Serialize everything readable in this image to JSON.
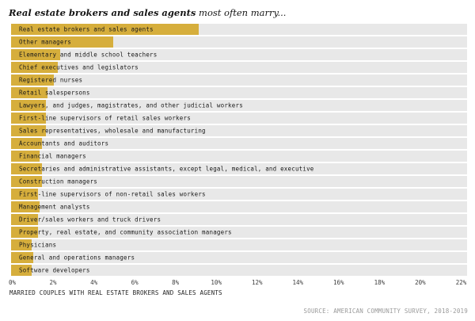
{
  "title": {
    "emphasis": "Real estate brokers and sales agents",
    "rest": " most often marry..."
  },
  "chart_data": {
    "type": "bar",
    "orientation": "horizontal",
    "title": "Real estate brokers and sales agents most often marry...",
    "xlabel": "MARRIED COUPLES WITH REAL ESTATE BROKERS AND SALES AGENTS",
    "ylabel": "",
    "xlim": [
      0,
      22
    ],
    "x_tick_labels": [
      "0%",
      "2%",
      "4%",
      "6%",
      "8%",
      "10%",
      "12%",
      "14%",
      "16%",
      "18%",
      "20%",
      "22%"
    ],
    "grid": false,
    "legend": false,
    "unit": "percent",
    "categories": [
      "Real estate brokers and sales agents",
      "Other managers",
      "Elementary and middle school teachers",
      "Chief executives and legislators",
      "Registered nurses",
      "Retail salespersons",
      "Lawyers, and judges, magistrates, and other judicial workers",
      "First-line supervisors of retail sales workers",
      "Sales representatives, wholesale and manufacturing",
      "Accountants and auditors",
      "Financial managers",
      "Secretaries and administrative assistants, except legal, medical, and executive",
      "Construction managers",
      "First-line supervisors of non-retail sales workers",
      "Management analysts",
      "Driver/sales workers and truck drivers",
      "Property, real estate, and community association managers",
      "Physicians",
      "General and operations managers",
      "Software developers"
    ],
    "values": [
      9.2,
      5.0,
      2.4,
      2.3,
      2.1,
      1.8,
      1.7,
      1.7,
      1.7,
      1.5,
      1.4,
      1.5,
      1.5,
      1.3,
      1.4,
      1.3,
      1.3,
      1.0,
      1.1,
      1.0
    ],
    "colors": {
      "bar": "#d6ae3c",
      "row_background": "#e8e8e8",
      "label_text": "#1a1a1a"
    }
  },
  "source": "SOURCE: AMERICAN COMMUNITY SURVEY, 2018-2019"
}
